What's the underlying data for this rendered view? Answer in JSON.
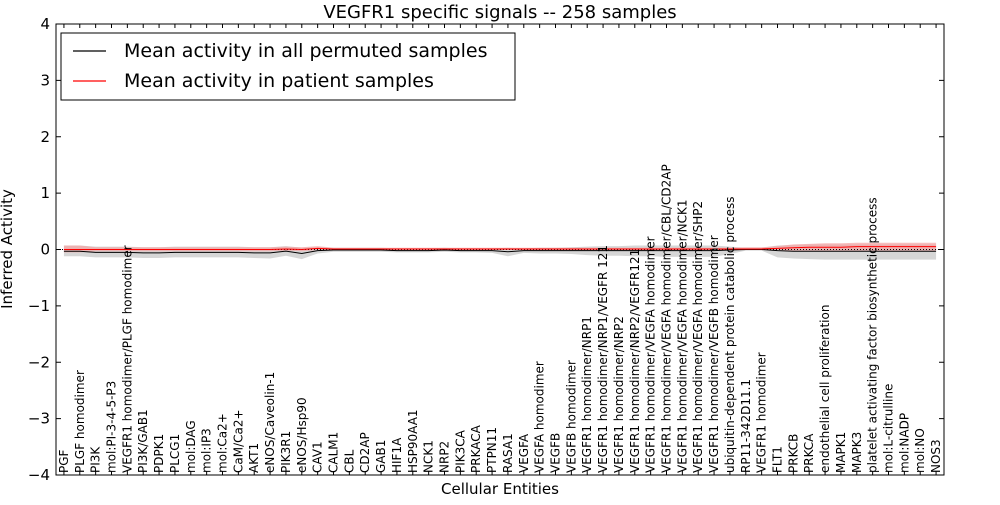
{
  "chart_data": {
    "type": "line",
    "title": "VEGFR1 specific signals -- 258 samples",
    "xlabel": "Cellular Entities",
    "ylabel": "Inferred Activity",
    "ylim": [
      -4,
      4
    ],
    "yticks": [
      "−4",
      "−3",
      "−2",
      "−1",
      "0",
      "1",
      "2",
      "3",
      "4"
    ],
    "legend_position": "top-left",
    "colors": {
      "permuted": "#000000",
      "patient": "#ff0000",
      "permuted_band": "#c8c8c8",
      "patient_band": "#f4a3a3"
    },
    "categories": [
      "PGF",
      "PLGF homodimer",
      "PI3K",
      "mol:PI-3-4-5-P3",
      "VEGFR1 homodimer/PLGF homodimer",
      "PI3K/GAB1",
      "PDPK1",
      "PLCG1",
      "mol:DAG",
      "mol:IP3",
      "mol:Ca2+",
      "CaM/Ca2+",
      "AKT1",
      "eNOS/Caveolin-1",
      "PIK3R1",
      "eNOS/Hsp90",
      "CAV1",
      "CALM1",
      "CBL",
      "CD2AP",
      "GAB1",
      "HIF1A",
      "HSP90AA1",
      "NCK1",
      "NRP2",
      "PIK3CA",
      "PRKACA",
      "PTPN11",
      "RASA1",
      "VEGFA",
      "VEGFA homodimer",
      "VEGFB",
      "VEGFB homodimer",
      "VEGFR1 homodimer/NRP1",
      "VEGFR1 homodimer/NRP1/VEGFR 121",
      "VEGFR1 homodimer/NRP2",
      "VEGFR1 homodimer/NRP2/VEGFR121",
      "VEGFR1 homodimer/VEGFA homodimer",
      "VEGFR1 homodimer/VEGFA homodimer/CBL/CD2AP",
      "VEGFR1 homodimer/VEGFA homodimer/NCK1",
      "VEGFR1 homodimer/VEGFA homodimer/SHP2",
      "VEGFR1 homodimer/VEGFB homodimer",
      "ubiquitin-dependent protein catabolic process",
      "RP11-342D11.1",
      "VEGFR1 homodimer",
      "FLT1",
      "PRKCB",
      "PRKCA",
      "endothelial cell proliferation",
      "MAPK1",
      "MAPK3",
      "platelet activating factor biosynthetic process",
      "mol:L-citrulline",
      "mol:NADP",
      "mol:NO",
      "NOS3"
    ],
    "series": [
      {
        "name": "Mean activity in all permuted samples",
        "values": [
          -0.03,
          -0.03,
          -0.05,
          -0.05,
          -0.05,
          -0.06,
          -0.06,
          -0.05,
          -0.05,
          -0.05,
          -0.05,
          -0.05,
          -0.06,
          -0.06,
          -0.03,
          -0.07,
          -0.02,
          -0.01,
          -0.01,
          -0.01,
          -0.01,
          -0.02,
          -0.02,
          -0.02,
          -0.01,
          -0.02,
          -0.02,
          -0.02,
          -0.04,
          -0.02,
          -0.02,
          -0.02,
          -0.02,
          -0.02,
          -0.02,
          -0.02,
          -0.02,
          -0.02,
          -0.02,
          -0.02,
          -0.02,
          -0.02,
          -0.01,
          0.0,
          0.0,
          -0.02,
          -0.03,
          -0.03,
          -0.03,
          -0.03,
          -0.03,
          -0.03,
          -0.03,
          -0.03,
          -0.03,
          -0.03
        ],
        "band_low": [
          -0.12,
          -0.12,
          -0.14,
          -0.14,
          -0.14,
          -0.15,
          -0.15,
          -0.14,
          -0.14,
          -0.14,
          -0.14,
          -0.14,
          -0.15,
          -0.16,
          -0.11,
          -0.17,
          -0.07,
          -0.04,
          -0.04,
          -0.04,
          -0.04,
          -0.05,
          -0.05,
          -0.05,
          -0.04,
          -0.05,
          -0.05,
          -0.06,
          -0.12,
          -0.06,
          -0.07,
          -0.07,
          -0.08,
          -0.1,
          -0.11,
          -0.11,
          -0.12,
          -0.12,
          -0.13,
          -0.13,
          -0.13,
          -0.13,
          -0.08,
          -0.02,
          -0.02,
          -0.14,
          -0.16,
          -0.17,
          -0.18,
          -0.18,
          -0.18,
          -0.18,
          -0.18,
          -0.18,
          -0.18,
          -0.18
        ],
        "band_high": [
          0.07,
          0.07,
          0.05,
          0.05,
          0.05,
          0.04,
          0.04,
          0.05,
          0.05,
          0.05,
          0.05,
          0.05,
          0.04,
          0.04,
          0.06,
          0.03,
          0.04,
          0.03,
          0.03,
          0.03,
          0.03,
          0.02,
          0.02,
          0.02,
          0.03,
          0.02,
          0.02,
          0.02,
          0.03,
          0.02,
          0.03,
          0.03,
          0.04,
          0.05,
          0.06,
          0.06,
          0.07,
          0.07,
          0.07,
          0.07,
          0.07,
          0.07,
          0.05,
          0.03,
          0.03,
          0.07,
          0.08,
          0.09,
          0.09,
          0.09,
          0.09,
          0.09,
          0.09,
          0.09,
          0.09,
          0.09
        ]
      },
      {
        "name": "Mean activity in patient samples",
        "values": [
          0.0,
          0.0,
          0.0,
          0.0,
          0.0,
          0.0,
          0.0,
          0.0,
          0.0,
          0.0,
          0.0,
          0.0,
          0.0,
          0.0,
          0.01,
          0.0,
          0.02,
          0.01,
          0.01,
          0.01,
          0.01,
          0.01,
          0.01,
          0.01,
          0.01,
          0.01,
          0.01,
          0.01,
          0.01,
          0.01,
          0.01,
          0.01,
          0.01,
          0.01,
          0.01,
          0.01,
          0.01,
          0.01,
          0.01,
          0.01,
          0.01,
          0.01,
          0.01,
          0.01,
          0.01,
          0.02,
          0.03,
          0.04,
          0.04,
          0.04,
          0.05,
          0.05,
          0.05,
          0.05,
          0.05,
          0.05
        ],
        "band_low": [
          -0.05,
          -0.05,
          -0.03,
          -0.03,
          -0.03,
          -0.03,
          -0.03,
          -0.03,
          -0.03,
          -0.03,
          -0.03,
          -0.03,
          -0.03,
          -0.03,
          -0.02,
          -0.03,
          -0.01,
          -0.01,
          -0.01,
          -0.01,
          -0.01,
          -0.01,
          -0.01,
          -0.01,
          -0.01,
          -0.01,
          -0.01,
          -0.01,
          -0.01,
          -0.01,
          -0.01,
          -0.01,
          -0.01,
          -0.01,
          -0.01,
          -0.01,
          -0.01,
          -0.01,
          -0.01,
          -0.01,
          -0.01,
          -0.01,
          -0.01,
          -0.01,
          -0.01,
          -0.01,
          -0.02,
          -0.02,
          -0.02,
          -0.02,
          -0.02,
          -0.02,
          -0.02,
          -0.02,
          -0.02,
          -0.02
        ],
        "band_high": [
          0.07,
          0.07,
          0.04,
          0.04,
          0.04,
          0.04,
          0.04,
          0.04,
          0.04,
          0.04,
          0.04,
          0.04,
          0.04,
          0.04,
          0.05,
          0.04,
          0.06,
          0.03,
          0.03,
          0.03,
          0.03,
          0.03,
          0.03,
          0.03,
          0.03,
          0.03,
          0.03,
          0.03,
          0.03,
          0.03,
          0.03,
          0.03,
          0.03,
          0.03,
          0.03,
          0.03,
          0.03,
          0.03,
          0.03,
          0.03,
          0.03,
          0.03,
          0.03,
          0.04,
          0.04,
          0.06,
          0.09,
          0.1,
          0.11,
          0.11,
          0.12,
          0.12,
          0.12,
          0.12,
          0.12,
          0.12
        ]
      }
    ],
    "reference_line": 0
  }
}
